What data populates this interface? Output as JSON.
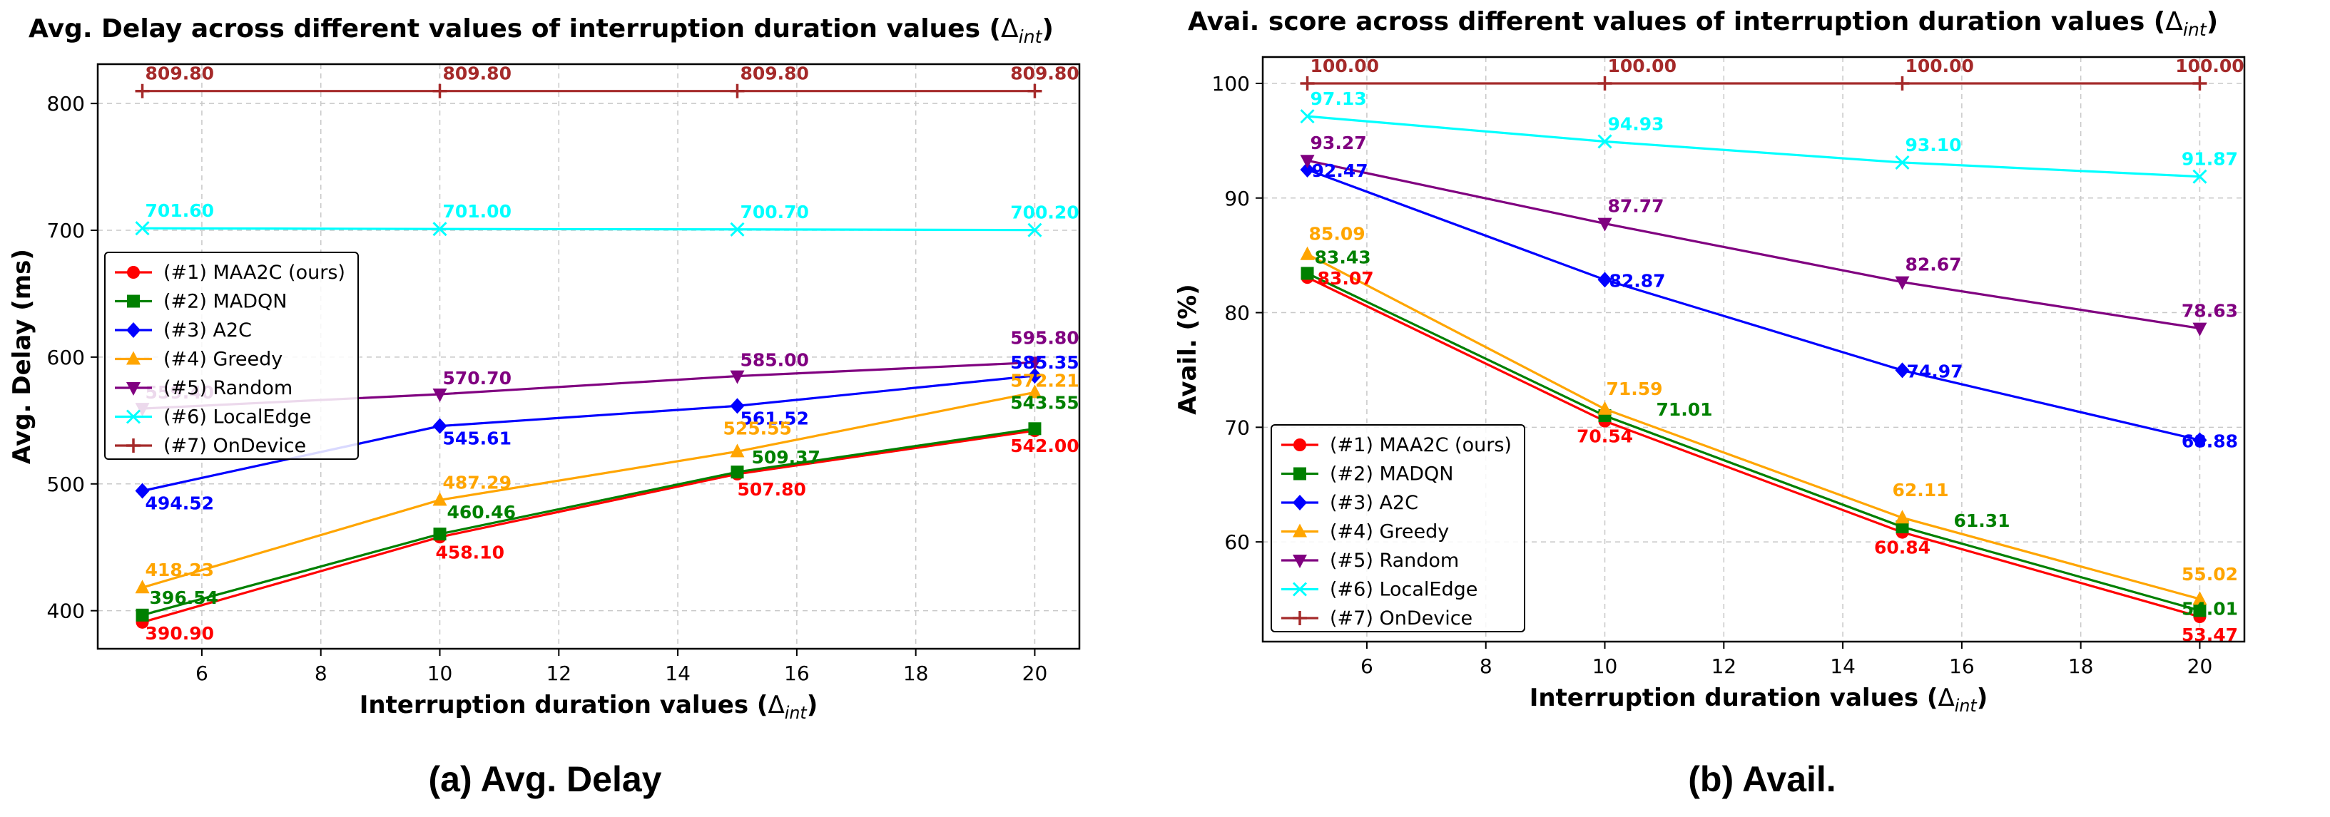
{
  "chart_data": [
    {
      "type": "line",
      "title": "Avg. Delay across different values of interruption duration values (",
      "title_symbol": "Δ",
      "title_sub": "int",
      "title_close": ")",
      "xlabel": "Interruption duration values (",
      "xlabel_symbol": "Δ",
      "xlabel_sub": "int",
      "xlabel_close": ")",
      "ylabel": "Avg. Delay (ms)",
      "caption": "(a) Avg. Delay",
      "x": [
        5,
        10,
        15,
        20
      ],
      "xlim": [
        4.25,
        20.75
      ],
      "ylim": [
        370,
        831
      ],
      "xticks": [
        6,
        8,
        10,
        12,
        14,
        16,
        18,
        20
      ],
      "yticks": [
        400,
        500,
        600,
        700,
        800
      ],
      "grid": true,
      "legend_position": "center-left",
      "series": [
        {
          "name": "(#1) MAA2C (ours)",
          "color": "#ff0000",
          "marker": "circle",
          "values": [
            390.9,
            458.1,
            507.8,
            542.0
          ],
          "labels": [
            "390.90",
            "458.10",
            "507.80",
            "542.00"
          ]
        },
        {
          "name": "(#2) MADQN",
          "color": "#008000",
          "marker": "square",
          "values": [
            396.54,
            460.46,
            509.37,
            543.55
          ],
          "labels": [
            "396.54",
            "460.46",
            "509.37",
            "543.55"
          ]
        },
        {
          "name": "(#3) A2C",
          "color": "#0000ff",
          "marker": "diamond",
          "values": [
            494.52,
            545.61,
            561.52,
            585.35
          ],
          "labels": [
            "494.52",
            "545.61",
            "561.52",
            "585.35"
          ]
        },
        {
          "name": "(#4) Greedy",
          "color": "#ffa500",
          "marker": "triangle-up",
          "values": [
            418.23,
            487.29,
            525.55,
            572.21
          ],
          "labels": [
            "418.23",
            "487.29",
            "525.55",
            "572.21"
          ]
        },
        {
          "name": "(#5) Random",
          "color": "#800080",
          "marker": "triangle-down",
          "values": [
            559.4,
            570.7,
            585.0,
            595.8
          ],
          "labels": [
            "559.40",
            "570.70",
            "585.00",
            "595.80"
          ]
        },
        {
          "name": "(#6) LocalEdge",
          "color": "#00ffff",
          "marker": "x",
          "values": [
            701.6,
            701.0,
            700.7,
            700.2
          ],
          "labels": [
            "701.60",
            "701.00",
            "700.70",
            "700.20"
          ]
        },
        {
          "name": "(#7) OnDevice",
          "color": "#a52a2a",
          "marker": "plus",
          "values": [
            809.8,
            809.8,
            809.8,
            809.8
          ],
          "labels": [
            "809.80",
            "809.80",
            "809.80",
            "809.80"
          ]
        }
      ]
    },
    {
      "type": "line",
      "title": "Avai. score across different values of interruption duration values (",
      "title_symbol": "Δ",
      "title_sub": "int",
      "title_close": ")",
      "xlabel": "Interruption duration values (",
      "xlabel_symbol": "Δ",
      "xlabel_sub": "int",
      "xlabel_close": ")",
      "ylabel": "Avail. (%)",
      "caption": "(b) Avail.",
      "x": [
        5,
        10,
        15,
        20
      ],
      "xlim": [
        4.25,
        20.75
      ],
      "ylim": [
        51.3,
        102.3
      ],
      "xticks": [
        6,
        8,
        10,
        12,
        14,
        16,
        18,
        20
      ],
      "yticks": [
        60,
        70,
        80,
        90,
        100
      ],
      "grid": true,
      "legend_position": "lower-left",
      "series": [
        {
          "name": "(#1) MAA2C (ours)",
          "color": "#ff0000",
          "marker": "circle",
          "values": [
            83.07,
            70.54,
            60.84,
            53.47
          ],
          "labels": [
            "83.07",
            "70.54",
            "60.84",
            "53.47"
          ]
        },
        {
          "name": "(#2) MADQN",
          "color": "#008000",
          "marker": "square",
          "values": [
            83.43,
            71.01,
            61.31,
            54.01
          ],
          "labels": [
            "83.43",
            "71.01",
            "61.31",
            "54.01"
          ]
        },
        {
          "name": "(#3) A2C",
          "color": "#0000ff",
          "marker": "diamond",
          "values": [
            92.47,
            82.87,
            74.97,
            68.88
          ],
          "labels": [
            "92.47",
            "82.87",
            "74.97",
            "68.88"
          ]
        },
        {
          "name": "(#4) Greedy",
          "color": "#ffa500",
          "marker": "triangle-up",
          "values": [
            85.09,
            71.59,
            62.11,
            55.02
          ],
          "labels": [
            "85.09",
            "71.59",
            "62.11",
            "55.02"
          ]
        },
        {
          "name": "(#5) Random",
          "color": "#800080",
          "marker": "triangle-down",
          "values": [
            93.27,
            87.77,
            82.67,
            78.63
          ],
          "labels": [
            "93.27",
            "87.77",
            "82.67",
            "78.63"
          ]
        },
        {
          "name": "(#6) LocalEdge",
          "color": "#00ffff",
          "marker": "x",
          "values": [
            97.13,
            94.93,
            93.1,
            91.87
          ],
          "labels": [
            "97.13",
            "94.93",
            "93.10",
            "91.87"
          ]
        },
        {
          "name": "(#7) OnDevice",
          "color": "#a52a2a",
          "marker": "plus",
          "values": [
            100.0,
            100.0,
            100.0,
            100.0
          ],
          "labels": [
            "100.00",
            "100.00",
            "100.00",
            "100.00"
          ]
        }
      ]
    }
  ]
}
